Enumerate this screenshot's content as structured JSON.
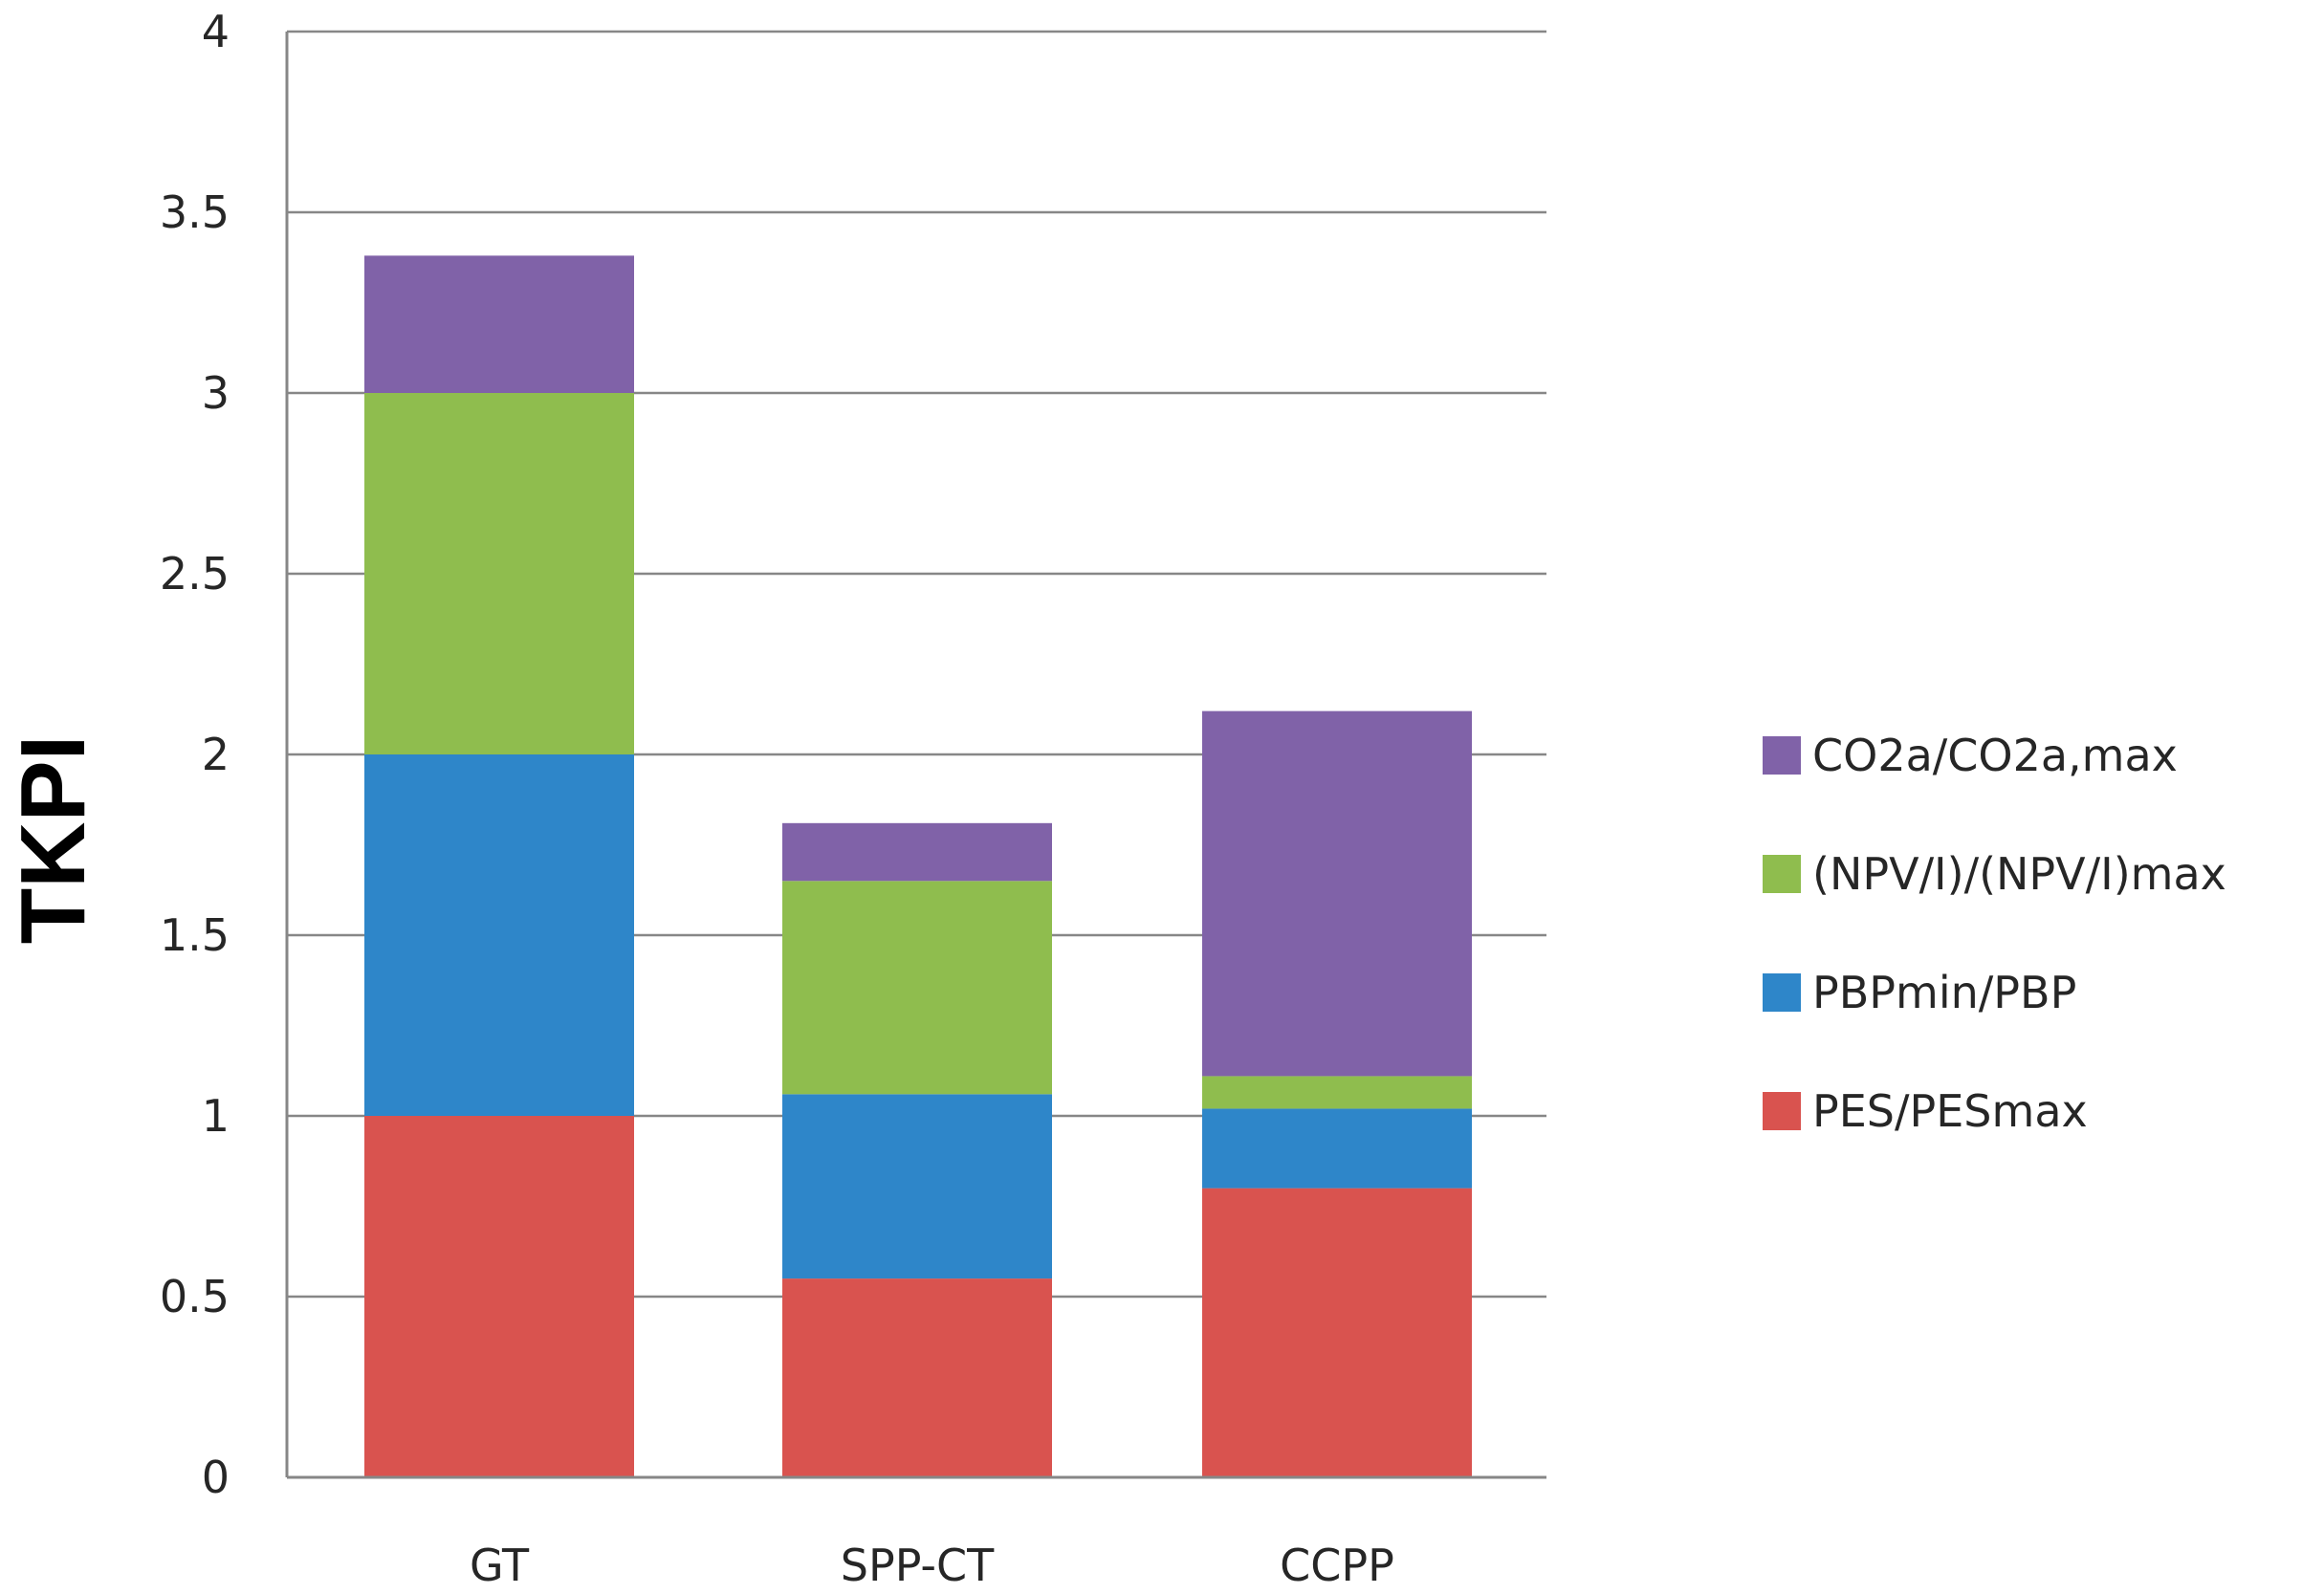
{
  "chart_data": {
    "type": "bar",
    "stacked": true,
    "title": "",
    "xlabel": "",
    "ylabel": "TKPI",
    "ylim": [
      0,
      4
    ],
    "yticks": [
      0,
      0.5,
      1,
      1.5,
      2,
      2.5,
      3,
      3.5,
      4
    ],
    "ytick_labels": [
      "0",
      "0.5",
      "1",
      "1.5",
      "2",
      "2.5",
      "3",
      "3.5",
      "4"
    ],
    "grid": true,
    "legend_position": "right",
    "categories": [
      "GT",
      "SPP-CT",
      "CCPP"
    ],
    "series": [
      {
        "name": "PES/PESmax",
        "color": "#d9534f",
        "values": [
          1.0,
          0.55,
          0.8
        ]
      },
      {
        "name": "PBPmin/PBP",
        "color": "#2e86c9",
        "values": [
          1.0,
          0.51,
          0.22
        ]
      },
      {
        "name": "(NPV/I)/(NPV/I)max",
        "color": "#8fbd4e",
        "values": [
          1.0,
          0.59,
          0.09
        ]
      },
      {
        "name": "CO2a/CO2a,max",
        "color": "#8062a8",
        "values": [
          0.38,
          0.16,
          1.01
        ]
      }
    ]
  }
}
